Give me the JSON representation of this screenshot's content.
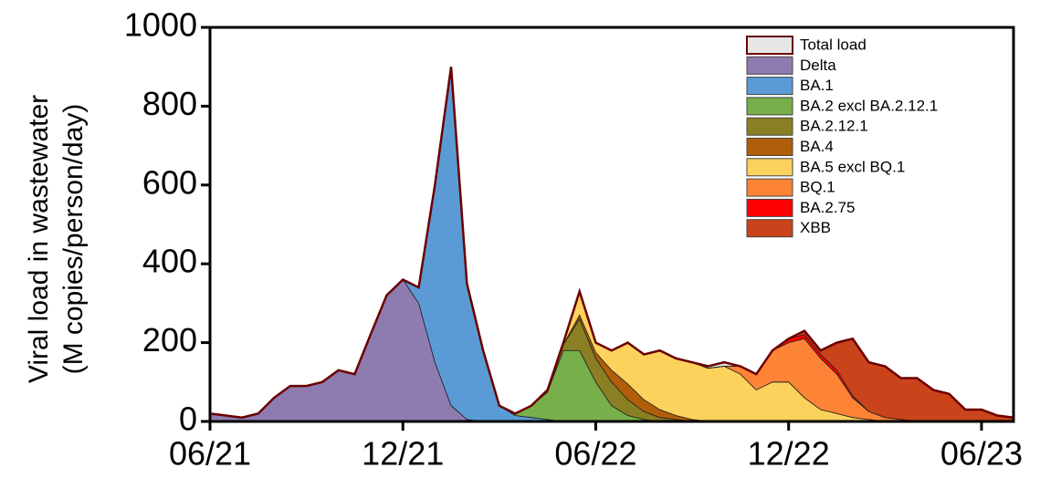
{
  "chart_data": {
    "type": "stacked-area",
    "y_label": [
      "Viral load in wastewater",
      "(M copies/person/day)"
    ],
    "x": [
      2021.417,
      2021.458,
      2021.5,
      2021.542,
      2021.583,
      2021.625,
      2021.667,
      2021.708,
      2021.75,
      2021.792,
      2021.833,
      2021.875,
      2021.917,
      2021.958,
      2022.0,
      2022.042,
      2022.083,
      2022.125,
      2022.167,
      2022.208,
      2022.25,
      2022.292,
      2022.333,
      2022.375,
      2022.417,
      2022.458,
      2022.5,
      2022.542,
      2022.583,
      2022.625,
      2022.667,
      2022.708,
      2022.75,
      2022.792,
      2022.833,
      2022.875,
      2022.917,
      2022.958,
      2023.0,
      2023.042,
      2023.083,
      2023.125,
      2023.167,
      2023.208,
      2023.25,
      2023.292,
      2023.333,
      2023.375,
      2023.417,
      2023.458,
      2023.5
    ],
    "total": {
      "name": "Total load",
      "color": "#e6e6e6",
      "edge_color": "#6b0000",
      "values": [
        20,
        15,
        10,
        20,
        60,
        90,
        90,
        100,
        130,
        120,
        220,
        320,
        360,
        340,
        600,
        900,
        350,
        180,
        40,
        20,
        40,
        80,
        200,
        330,
        200,
        180,
        200,
        170,
        180,
        160,
        150,
        140,
        150,
        140,
        120,
        180,
        210,
        230,
        180,
        200,
        210,
        150,
        140,
        110,
        110,
        80,
        70,
        30,
        30,
        15,
        10
      ]
    },
    "series": [
      {
        "name": "Delta",
        "color": "#8e7cb0",
        "values": [
          20,
          15,
          10,
          20,
          60,
          90,
          90,
          100,
          130,
          120,
          220,
          320,
          360,
          300,
          150,
          40,
          5,
          0,
          0,
          0,
          0,
          0,
          0,
          0,
          0,
          0,
          0,
          0,
          0,
          0,
          0,
          0,
          0,
          0,
          0,
          0,
          0,
          0,
          0,
          0,
          0,
          0,
          0,
          0,
          0,
          0,
          0,
          0,
          0,
          0,
          0
        ]
      },
      {
        "name": "BA.1",
        "color": "#5b9bd5",
        "values": [
          0,
          0,
          0,
          0,
          0,
          0,
          0,
          0,
          0,
          0,
          0,
          0,
          0,
          40,
          450,
          860,
          345,
          180,
          40,
          15,
          10,
          5,
          0,
          0,
          0,
          0,
          0,
          0,
          0,
          0,
          0,
          0,
          0,
          0,
          0,
          0,
          0,
          0,
          0,
          0,
          0,
          0,
          0,
          0,
          0,
          0,
          0,
          0,
          0,
          0,
          0
        ]
      },
      {
        "name": "BA.2 excl BA.2.12.1",
        "color": "#77b04a",
        "values": [
          0,
          0,
          0,
          0,
          0,
          0,
          0,
          0,
          0,
          0,
          0,
          0,
          0,
          0,
          0,
          0,
          0,
          0,
          0,
          5,
          30,
          70,
          180,
          180,
          100,
          40,
          15,
          5,
          0,
          0,
          0,
          0,
          0,
          0,
          0,
          0,
          0,
          0,
          0,
          0,
          0,
          0,
          0,
          0,
          0,
          0,
          0,
          0,
          0,
          0,
          0
        ]
      },
      {
        "name": "BA.2.12.1",
        "color": "#8a7f22",
        "values": [
          0,
          0,
          0,
          0,
          0,
          0,
          0,
          0,
          0,
          0,
          0,
          0,
          0,
          0,
          0,
          0,
          0,
          0,
          0,
          0,
          0,
          0,
          15,
          80,
          60,
          60,
          40,
          20,
          10,
          5,
          0,
          0,
          0,
          0,
          0,
          0,
          0,
          0,
          0,
          0,
          0,
          0,
          0,
          0,
          0,
          0,
          0,
          0,
          0,
          0,
          0
        ]
      },
      {
        "name": "BA.4",
        "color": "#b05e0a",
        "values": [
          0,
          0,
          0,
          0,
          0,
          0,
          0,
          0,
          0,
          0,
          0,
          0,
          0,
          0,
          0,
          0,
          0,
          0,
          0,
          0,
          0,
          0,
          0,
          10,
          15,
          30,
          40,
          30,
          20,
          10,
          5,
          0,
          0,
          0,
          0,
          0,
          0,
          0,
          0,
          0,
          0,
          0,
          0,
          0,
          0,
          0,
          0,
          0,
          0,
          0,
          0
        ]
      },
      {
        "name": "BA.5 excl BQ.1",
        "color": "#fcd25c",
        "values": [
          0,
          0,
          0,
          0,
          0,
          0,
          0,
          0,
          0,
          0,
          0,
          0,
          0,
          0,
          0,
          0,
          0,
          0,
          0,
          0,
          0,
          0,
          5,
          60,
          25,
          50,
          105,
          115,
          150,
          145,
          145,
          135,
          140,
          120,
          80,
          100,
          100,
          60,
          30,
          20,
          10,
          5,
          0,
          0,
          0,
          0,
          0,
          0,
          0,
          0,
          0
        ]
      },
      {
        "name": "BQ.1",
        "color": "#fd8436",
        "values": [
          0,
          0,
          0,
          0,
          0,
          0,
          0,
          0,
          0,
          0,
          0,
          0,
          0,
          0,
          0,
          0,
          0,
          0,
          0,
          0,
          0,
          0,
          0,
          0,
          0,
          0,
          0,
          0,
          0,
          0,
          0,
          0,
          0,
          20,
          40,
          80,
          100,
          150,
          130,
          100,
          50,
          20,
          10,
          5,
          0,
          0,
          0,
          0,
          0,
          0,
          0
        ]
      },
      {
        "name": "BA.2.75",
        "color": "#ff0000",
        "values": [
          0,
          0,
          0,
          0,
          0,
          0,
          0,
          0,
          0,
          0,
          0,
          0,
          0,
          0,
          0,
          0,
          0,
          0,
          0,
          0,
          0,
          0,
          0,
          0,
          0,
          0,
          0,
          0,
          0,
          0,
          0,
          0,
          0,
          0,
          0,
          0,
          10,
          10,
          10,
          10,
          5,
          0,
          0,
          0,
          0,
          0,
          0,
          0,
          0,
          0,
          0
        ]
      },
      {
        "name": "XBB",
        "color": "#c9441a",
        "values": [
          0,
          0,
          0,
          0,
          0,
          0,
          0,
          0,
          0,
          0,
          0,
          0,
          0,
          0,
          0,
          0,
          0,
          0,
          0,
          0,
          0,
          0,
          0,
          0,
          0,
          0,
          0,
          0,
          0,
          0,
          0,
          0,
          0,
          0,
          0,
          0,
          0,
          10,
          10,
          70,
          145,
          125,
          130,
          105,
          110,
          80,
          70,
          30,
          30,
          15,
          10
        ]
      }
    ],
    "xlim": [
      2021.417,
      2023.5
    ],
    "xticks": [
      {
        "value": 2021.417,
        "label": "06/21"
      },
      {
        "value": 2021.917,
        "label": "12/21"
      },
      {
        "value": 2022.417,
        "label": "06/22"
      },
      {
        "value": 2022.917,
        "label": "12/22"
      },
      {
        "value": 2023.417,
        "label": "06/23"
      }
    ],
    "ylim": [
      0,
      1000
    ],
    "yticks": [
      0,
      200,
      400,
      600,
      800,
      1000
    ],
    "legend": "top-right"
  }
}
